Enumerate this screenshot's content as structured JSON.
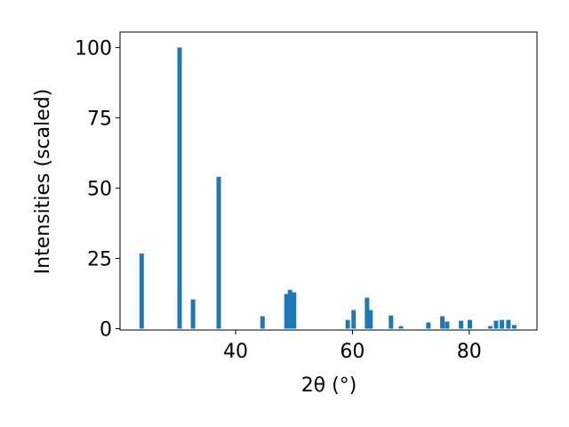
{
  "chart_data": {
    "type": "bar",
    "xlabel": "2θ (°)",
    "ylabel": "Intensities (scaled)",
    "x": [
      23.9,
      30.4,
      32.7,
      37.1,
      44.6,
      48.7,
      49.3,
      50.0,
      59.2,
      60.2,
      62.5,
      63.1,
      66.6,
      68.3,
      73.0,
      75.4,
      76.2,
      78.6,
      80.1,
      83.6,
      84.6,
      85.6,
      86.7,
      87.7
    ],
    "values": [
      26.7,
      100,
      10.4,
      54,
      4.4,
      12.3,
      13.8,
      12.9,
      3.1,
      6.6,
      11,
      6.6,
      4.7,
      0.9,
      2.2,
      4.4,
      2.5,
      2.8,
      3.1,
      0.9,
      2.8,
      3.1,
      3.1,
      1.3
    ],
    "color": "#1f77b4",
    "xlim": [
      20.2,
      91.6
    ],
    "xticks": [
      40,
      60,
      80
    ],
    "ylim": [
      -0.5,
      105.5
    ],
    "yticks": [
      0,
      25,
      50,
      75,
      100
    ],
    "grid": false
  }
}
